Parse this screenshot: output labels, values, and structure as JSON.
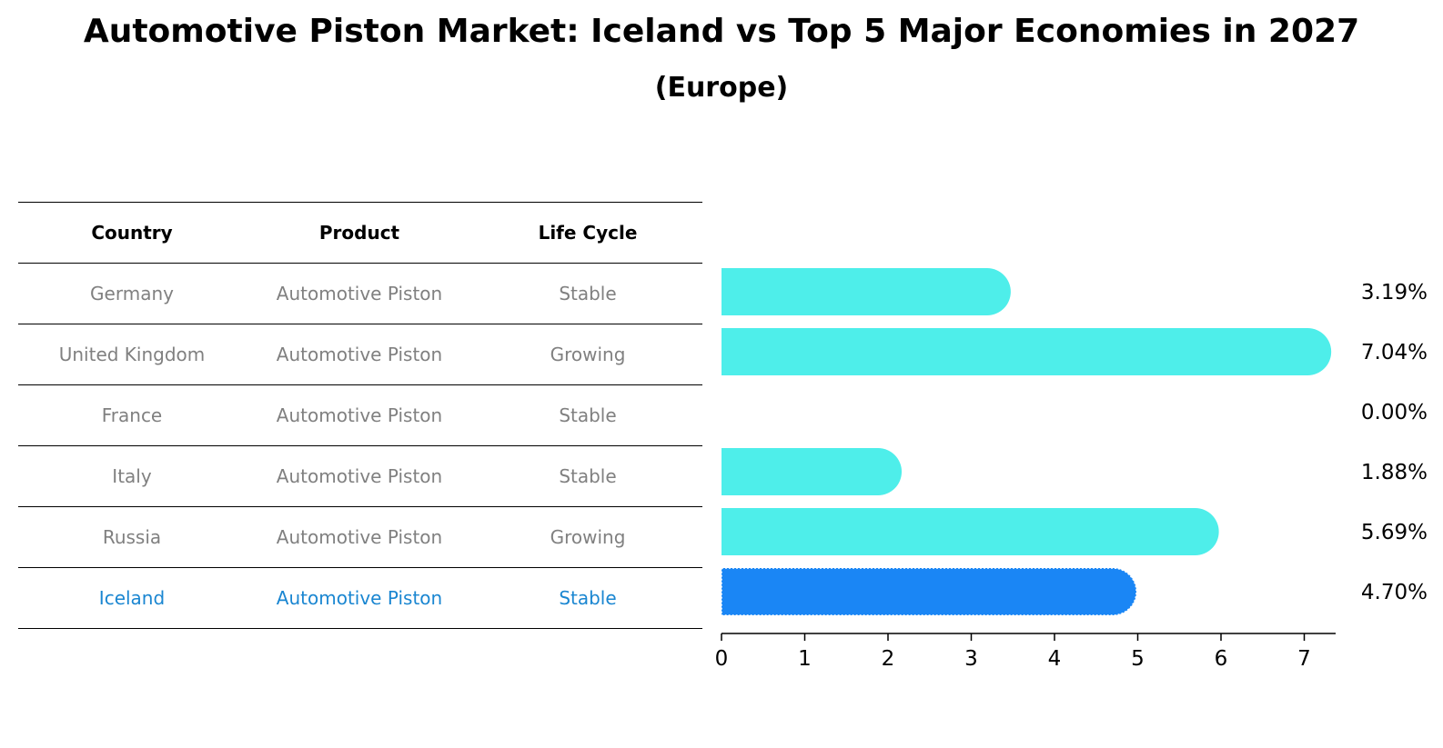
{
  "chart_data": {
    "type": "bar",
    "orientation": "horizontal",
    "title": "Automotive Piston Market: Iceland vs Top 5 Major Economies in 2027",
    "subtitle": "(Europe)",
    "table": {
      "headers": [
        "Country",
        "Product",
        "Life Cycle"
      ],
      "rows": [
        {
          "country": "Germany",
          "product": "Automotive Piston",
          "life_cycle": "Stable"
        },
        {
          "country": "United Kingdom",
          "product": "Automotive Piston",
          "life_cycle": "Growing"
        },
        {
          "country": "France",
          "product": "Automotive Piston",
          "life_cycle": "Stable"
        },
        {
          "country": "Italy",
          "product": "Automotive Piston",
          "life_cycle": "Stable"
        },
        {
          "country": "Russia",
          "product": "Automotive Piston",
          "life_cycle": "Growing"
        },
        {
          "country": "Iceland",
          "product": "Automotive Piston",
          "life_cycle": "Stable"
        }
      ]
    },
    "categories": [
      "Germany",
      "United Kingdom",
      "France",
      "Italy",
      "Russia",
      "Iceland"
    ],
    "values": [
      3.19,
      7.04,
      0.0,
      1.88,
      5.69,
      4.7
    ],
    "value_labels": [
      "3.19%",
      "7.04%",
      "0.00%",
      "1.88%",
      "5.69%",
      "4.70%"
    ],
    "highlight": "Iceland",
    "xticks": [
      0,
      1,
      2,
      3,
      4,
      5,
      6,
      7
    ],
    "xlim": [
      0,
      7.4
    ],
    "grid": false,
    "colors": {
      "bar": "#4eeeea",
      "highlight_bar": "#1a86f5",
      "highlight_text": "#1a86d1",
      "table_text": "#808080"
    }
  }
}
